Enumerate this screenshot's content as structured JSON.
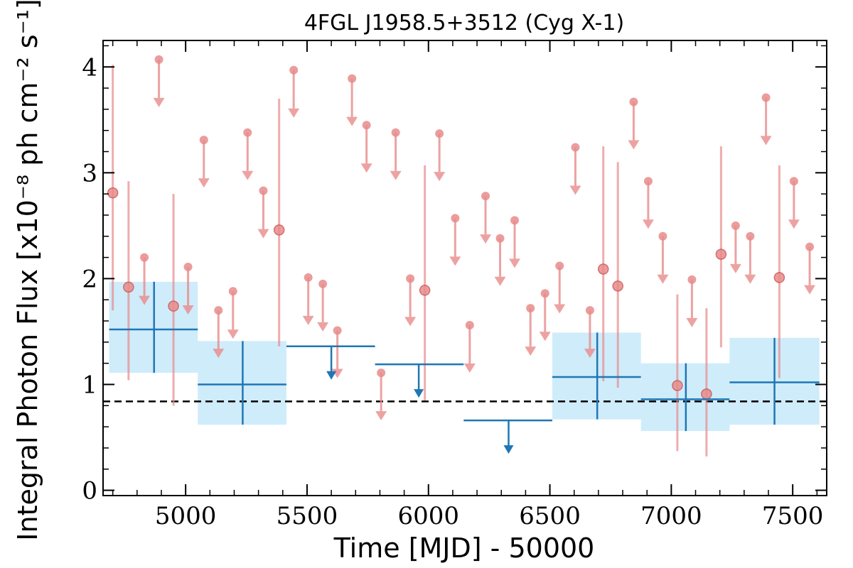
{
  "chart_data": {
    "type": "scatter",
    "title": "4FGL J1958.5+3512 (Cyg X-1)",
    "xlabel": "Time [MJD] - 50000",
    "ylabel": "Integral Photon Flux [x10⁻⁸ ph cm⁻² s⁻¹]",
    "xlim": [
      4660,
      7640
    ],
    "ylim": [
      -0.05,
      4.25
    ],
    "x_ticks": [
      "5000",
      "5500",
      "6000",
      "6500",
      "7000",
      "7500"
    ],
    "x_tick_values": [
      5000,
      5500,
      6000,
      6500,
      7000,
      7500
    ],
    "y_ticks": [
      "0",
      "1",
      "2",
      "3",
      "4"
    ],
    "y_tick_values": [
      0,
      1,
      2,
      3,
      4
    ],
    "reference_line": {
      "y": 0.84,
      "style": "dashed"
    },
    "colors": {
      "short_bins": "#e88b8b",
      "long_bins": "#1f77b4",
      "long_bins_fill": "#a8dcf8"
    },
    "series": [
      {
        "color_role": "short_bins",
        "detections": [
          {
            "x": 4700,
            "y": 2.81,
            "lo": 1.7,
            "hi": 4.02
          },
          {
            "x": 4765,
            "y": 1.92,
            "lo": 1.04,
            "hi": 2.92
          },
          {
            "x": 4950,
            "y": 1.74,
            "lo": 0.8,
            "hi": 2.8
          },
          {
            "x": 5385,
            "y": 2.46,
            "lo": 1.36,
            "hi": 3.7
          },
          {
            "x": 5985,
            "y": 1.89,
            "lo": 0.85,
            "hi": 3.07
          },
          {
            "x": 6720,
            "y": 2.09,
            "lo": 1.03,
            "hi": 3.25
          },
          {
            "x": 6780,
            "y": 1.93,
            "lo": 0.97,
            "hi": 3.1
          },
          {
            "x": 7025,
            "y": 0.99,
            "lo": 0.37,
            "hi": 1.85
          },
          {
            "x": 7145,
            "y": 0.91,
            "lo": 0.32,
            "hi": 1.72
          },
          {
            "x": 7205,
            "y": 2.23,
            "lo": 1.35,
            "hi": 3.25
          },
          {
            "x": 7445,
            "y": 2.01,
            "lo": 1.06,
            "hi": 3.07
          }
        ],
        "upper_limits": [
          {
            "x": 4830,
            "y": 2.2
          },
          {
            "x": 4890,
            "y": 4.07
          },
          {
            "x": 5010,
            "y": 2.11
          },
          {
            "x": 5075,
            "y": 3.31
          },
          {
            "x": 5135,
            "y": 1.7
          },
          {
            "x": 5195,
            "y": 1.88
          },
          {
            "x": 5255,
            "y": 3.38
          },
          {
            "x": 5320,
            "y": 2.83
          },
          {
            "x": 5445,
            "y": 3.97
          },
          {
            "x": 5505,
            "y": 2.01
          },
          {
            "x": 5565,
            "y": 1.95
          },
          {
            "x": 5625,
            "y": 1.51
          },
          {
            "x": 5685,
            "y": 3.89
          },
          {
            "x": 5745,
            "y": 3.45
          },
          {
            "x": 5805,
            "y": 1.11
          },
          {
            "x": 5865,
            "y": 3.38
          },
          {
            "x": 5925,
            "y": 2.0
          },
          {
            "x": 6045,
            "y": 3.37
          },
          {
            "x": 6110,
            "y": 2.57
          },
          {
            "x": 6170,
            "y": 1.56
          },
          {
            "x": 6235,
            "y": 2.78
          },
          {
            "x": 6295,
            "y": 2.38
          },
          {
            "x": 6355,
            "y": 2.55
          },
          {
            "x": 6420,
            "y": 1.72
          },
          {
            "x": 6480,
            "y": 1.86
          },
          {
            "x": 6540,
            "y": 2.12
          },
          {
            "x": 6605,
            "y": 3.24
          },
          {
            "x": 6665,
            "y": 1.7
          },
          {
            "x": 6845,
            "y": 3.67
          },
          {
            "x": 6905,
            "y": 2.92
          },
          {
            "x": 6965,
            "y": 2.4
          },
          {
            "x": 7085,
            "y": 1.99
          },
          {
            "x": 7265,
            "y": 2.5
          },
          {
            "x": 7325,
            "y": 2.4
          },
          {
            "x": 7390,
            "y": 3.71
          },
          {
            "x": 7505,
            "y": 2.92
          },
          {
            "x": 7570,
            "y": 2.3
          }
        ]
      },
      {
        "color_role": "long_bins",
        "detections": [
          {
            "x": 4870,
            "x_lo": 4685,
            "x_hi": 5050,
            "y": 1.52,
            "lo": 1.11,
            "hi": 1.97
          },
          {
            "x": 5235,
            "x_lo": 5050,
            "x_hi": 5415,
            "y": 1.0,
            "lo": 0.62,
            "hi": 1.41
          },
          {
            "x": 6695,
            "x_lo": 6510,
            "x_hi": 6875,
            "y": 1.07,
            "lo": 0.67,
            "hi": 1.49
          },
          {
            "x": 7060,
            "x_lo": 6875,
            "x_hi": 7240,
            "y": 0.86,
            "lo": 0.56,
            "hi": 1.2
          },
          {
            "x": 7425,
            "x_lo": 7240,
            "x_hi": 7610,
            "y": 1.02,
            "lo": 0.62,
            "hi": 1.44
          }
        ],
        "upper_limits": [
          {
            "x": 5600,
            "x_lo": 5415,
            "x_hi": 5780,
            "y": 1.36
          },
          {
            "x": 5960,
            "x_lo": 5780,
            "x_hi": 6145,
            "y": 1.19
          },
          {
            "x": 6330,
            "x_lo": 6145,
            "x_hi": 6510,
            "y": 0.66
          }
        ]
      }
    ]
  }
}
